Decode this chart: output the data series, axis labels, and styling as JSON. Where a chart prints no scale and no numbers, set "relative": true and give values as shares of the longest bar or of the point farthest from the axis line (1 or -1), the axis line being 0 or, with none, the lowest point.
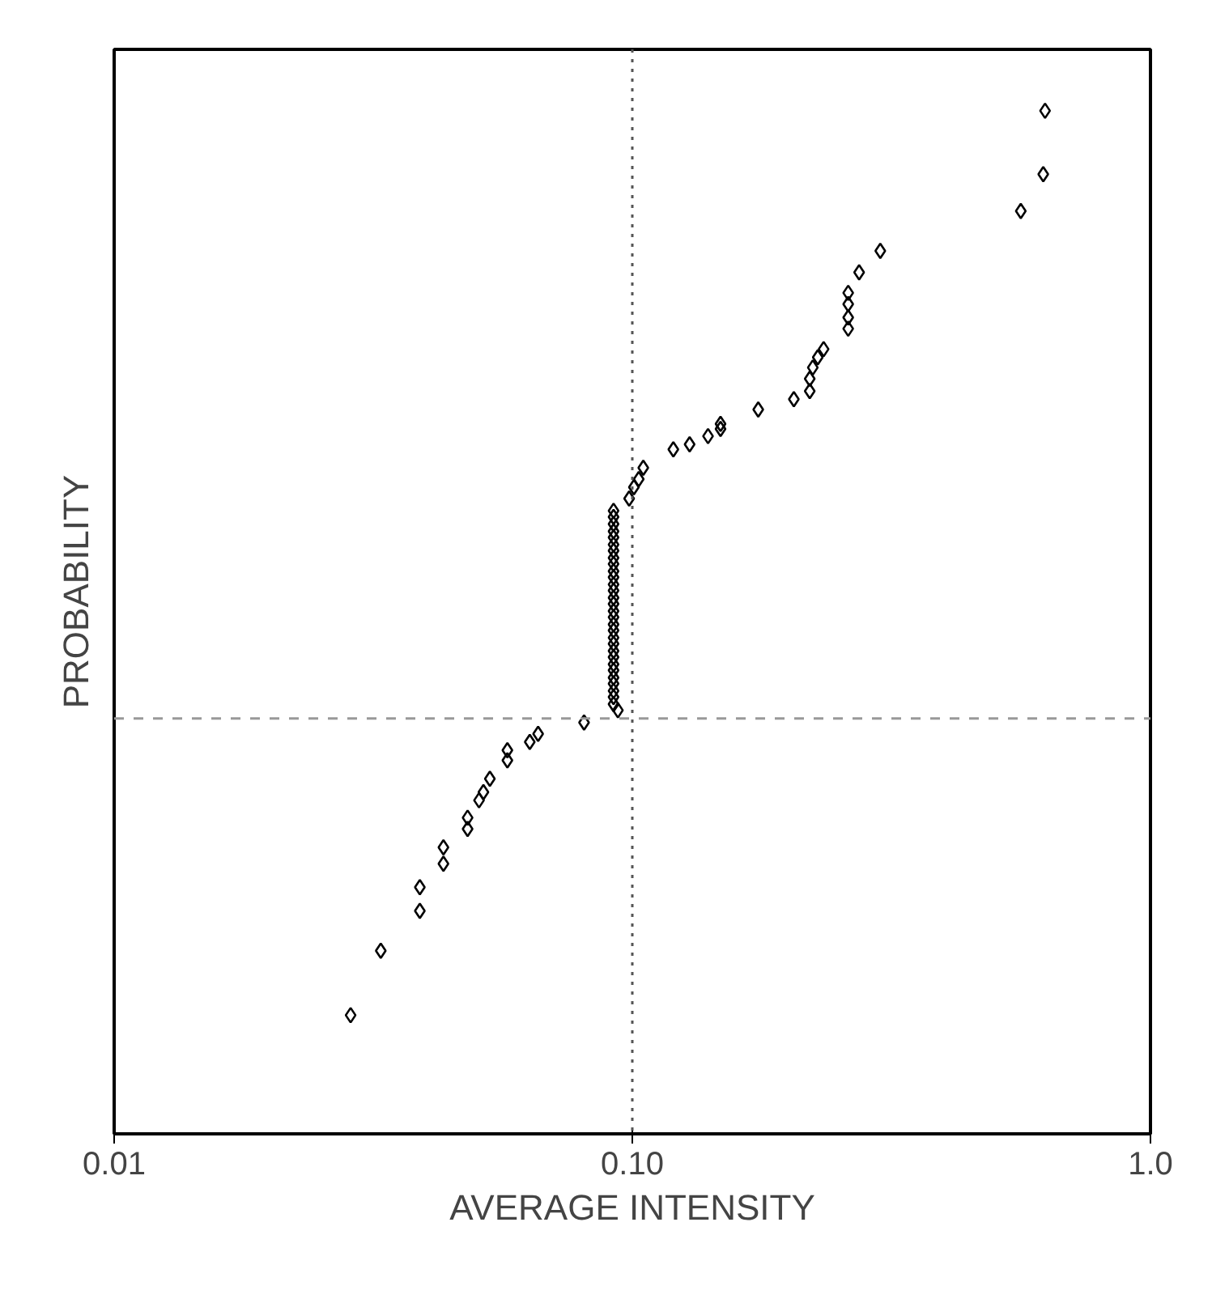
{
  "chart_data": {
    "type": "scatter",
    "xlabel": "AVERAGE INTENSITY",
    "ylabel": "PROBABILITY",
    "relative": true,
    "log": "x",
    "xlim": [
      0.01,
      1.0
    ],
    "xticks": [
      0.01,
      {
        "value": 0.1,
        "label": "0.10"
      },
      {
        "value": 1.0,
        "label": "1.0"
      }
    ],
    "tick_labels": "x",
    "marker": "diamond",
    "ref_lines": [
      {
        "axis": "y",
        "value": 0.406,
        "color": "#999999",
        "line_style": "dashed"
      },
      {
        "axis": "x",
        "value": 0.1,
        "color": "#555555",
        "line_style": "dotted"
      }
    ],
    "series": [
      {
        "color": "#000000",
        "x": [
          0.0286,
          0.0327,
          0.0389,
          0.0389,
          0.0432,
          0.0432,
          0.0481,
          0.0481,
          0.0506,
          0.0516,
          0.0531,
          0.0574,
          0.0574,
          0.0634,
          0.0658,
          0.0807,
          0.0938,
          0.092,
          0.092,
          0.092,
          0.092,
          0.092,
          0.092,
          0.092,
          0.092,
          0.092,
          0.092,
          0.092,
          0.092,
          0.092,
          0.092,
          0.092,
          0.092,
          0.092,
          0.092,
          0.092,
          0.092,
          0.092,
          0.092,
          0.092,
          0.092,
          0.092,
          0.092,
          0.092,
          0.092,
          0.092,
          0.092,
          0.0986,
          0.1007,
          0.1029,
          0.105,
          0.12,
          0.129,
          0.14,
          0.148,
          0.148,
          0.175,
          0.205,
          0.22,
          0.22,
          0.223,
          0.228,
          0.234,
          0.261,
          0.261,
          0.261,
          0.261,
          0.274,
          0.301,
          0.562,
          0.621,
          0.626
        ],
        "values": [
          0.116,
          0.179,
          0.218,
          0.241,
          0.264,
          0.28,
          0.298,
          0.309,
          0.326,
          0.334,
          0.347,
          0.365,
          0.375,
          0.383,
          0.391,
          0.402,
          0.414,
          0.42,
          0.427,
          0.433,
          0.44,
          0.446,
          0.453,
          0.459,
          0.466,
          0.472,
          0.479,
          0.485,
          0.492,
          0.498,
          0.505,
          0.511,
          0.518,
          0.524,
          0.531,
          0.537,
          0.544,
          0.55,
          0.557,
          0.563,
          0.57,
          0.576,
          0.583,
          0.589,
          0.596,
          0.603,
          0.609,
          0.621,
          0.632,
          0.64,
          0.651,
          0.669,
          0.674,
          0.682,
          0.689,
          0.694,
          0.708,
          0.718,
          0.726,
          0.738,
          0.749,
          0.759,
          0.767,
          0.787,
          0.798,
          0.811,
          0.822,
          0.842,
          0.863,
          0.902,
          0.938,
          1.0
        ]
      }
    ]
  }
}
